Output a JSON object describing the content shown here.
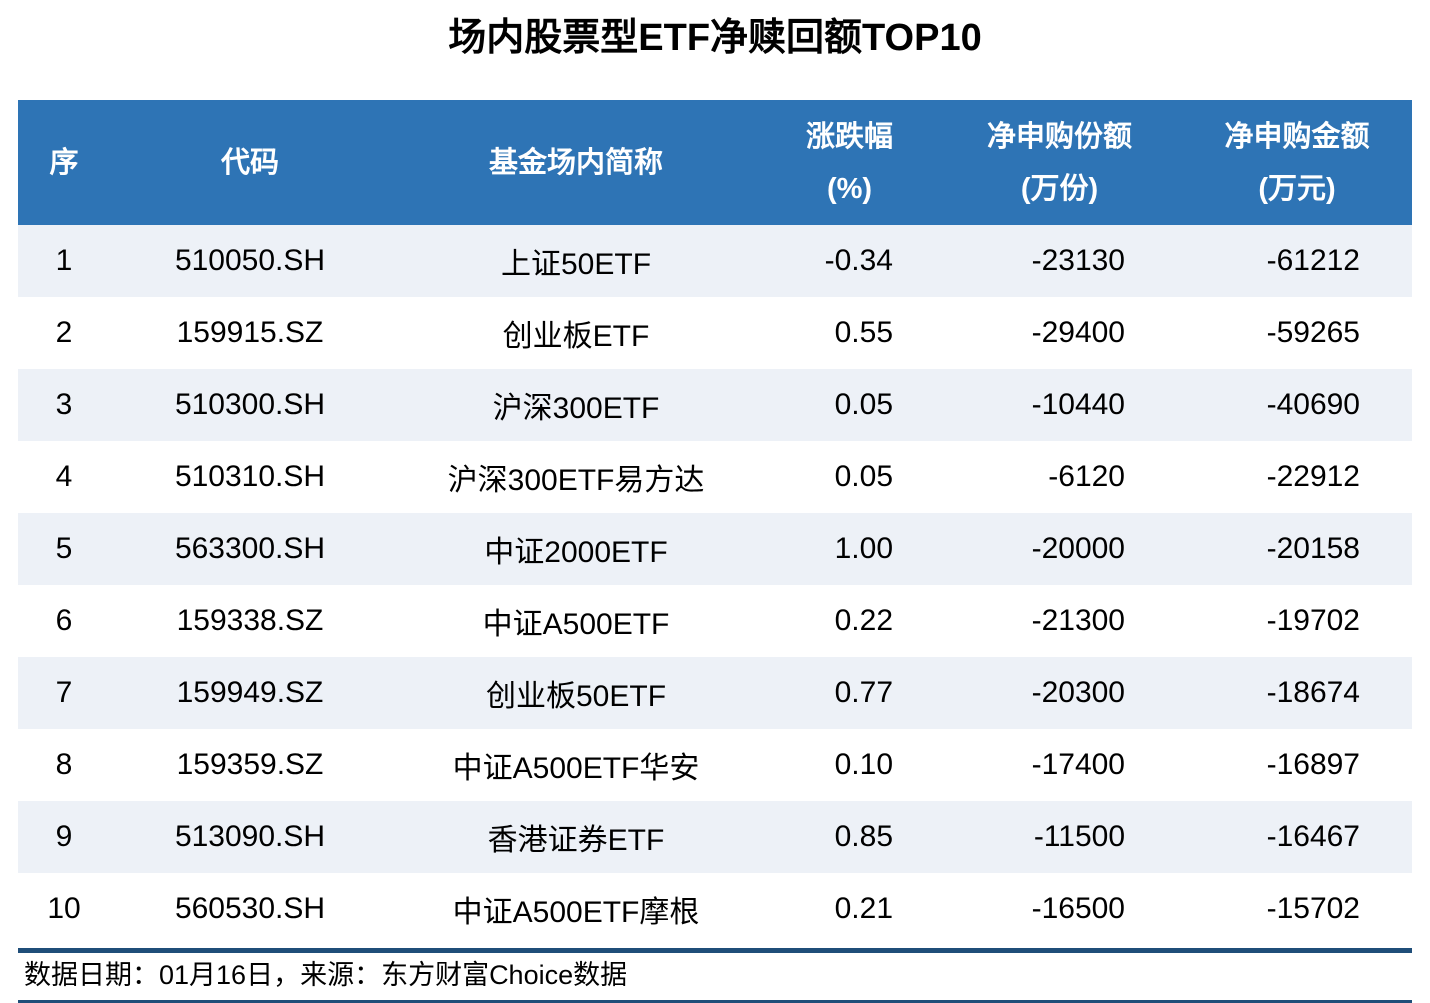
{
  "title": "场内股票型ETF净赎回额TOP10",
  "footer": {
    "text": "数据日期：01月16日，来源：东方财富Choice数据"
  },
  "colors": {
    "header_bg": "#2E74B5",
    "header_text": "#FFFFFF",
    "alt_row_bg": "#EDF1F7",
    "rule": "#1F4E79",
    "body_text": "#000000"
  },
  "chart_data": {
    "type": "table",
    "title": "场内股票型ETF净赎回额TOP10",
    "columns": [
      {
        "key": "seq",
        "label": "序",
        "unit": ""
      },
      {
        "key": "code",
        "label": "代码",
        "unit": ""
      },
      {
        "key": "name",
        "label": "基金场内简称",
        "unit": ""
      },
      {
        "key": "pct",
        "label": "涨跌幅",
        "unit": "(%)"
      },
      {
        "key": "shares",
        "label": "净申购份额",
        "unit": "(万份)"
      },
      {
        "key": "amount",
        "label": "净申购金额",
        "unit": "(万元)"
      }
    ],
    "rows": [
      {
        "seq": "1",
        "code": "510050.SH",
        "name": "上证50ETF",
        "pct": "-0.34",
        "shares": "-23130",
        "amount": "-61212"
      },
      {
        "seq": "2",
        "code": "159915.SZ",
        "name": "创业板ETF",
        "pct": "0.55",
        "shares": "-29400",
        "amount": "-59265"
      },
      {
        "seq": "3",
        "code": "510300.SH",
        "name": "沪深300ETF",
        "pct": "0.05",
        "shares": "-10440",
        "amount": "-40690"
      },
      {
        "seq": "4",
        "code": "510310.SH",
        "name": "沪深300ETF易方达",
        "pct": "0.05",
        "shares": "-6120",
        "amount": "-22912"
      },
      {
        "seq": "5",
        "code": "563300.SH",
        "name": "中证2000ETF",
        "pct": "1.00",
        "shares": "-20000",
        "amount": "-20158"
      },
      {
        "seq": "6",
        "code": "159338.SZ",
        "name": "中证A500ETF",
        "pct": "0.22",
        "shares": "-21300",
        "amount": "-19702"
      },
      {
        "seq": "7",
        "code": "159949.SZ",
        "name": "创业板50ETF",
        "pct": "0.77",
        "shares": "-20300",
        "amount": "-18674"
      },
      {
        "seq": "8",
        "code": "159359.SZ",
        "name": "中证A500ETF华安",
        "pct": "0.10",
        "shares": "-17400",
        "amount": "-16897"
      },
      {
        "seq": "9",
        "code": "513090.SH",
        "name": "香港证券ETF",
        "pct": "0.85",
        "shares": "-11500",
        "amount": "-16467"
      },
      {
        "seq": "10",
        "code": "560530.SH",
        "name": "中证A500ETF摩根",
        "pct": "0.21",
        "shares": "-16500",
        "amount": "-15702"
      }
    ]
  }
}
